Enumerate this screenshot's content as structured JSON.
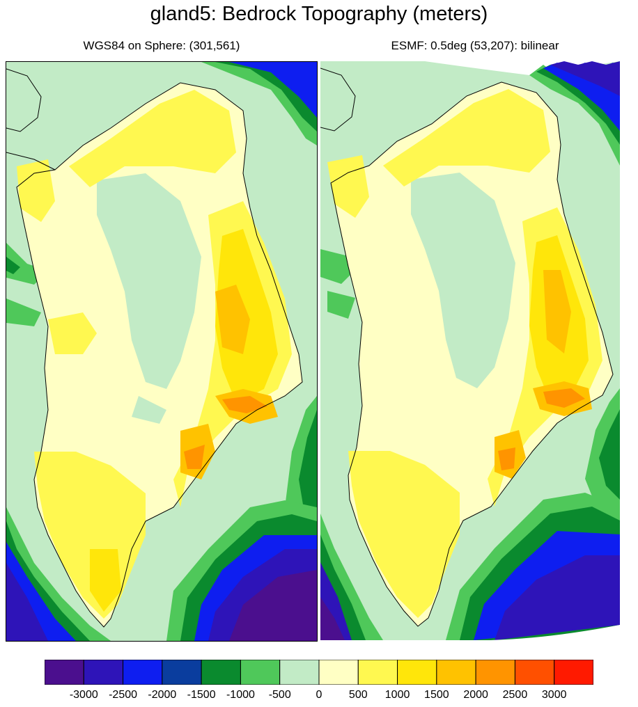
{
  "title": "gland5: Bedrock Topography (meters)",
  "panels": [
    {
      "title": "WGS84 on Sphere: (301,561)"
    },
    {
      "title": "ESMF: 0.5deg (53,207): bilinear"
    }
  ],
  "colorbar": {
    "colors": [
      "#4b0f8e",
      "#2e14b8",
      "#0e1ef0",
      "#0a3d9e",
      "#0a8a2e",
      "#4fc85a",
      "#c2ebc6",
      "#ffffc4",
      "#fff850",
      "#ffe60a",
      "#ffc200",
      "#ff9400",
      "#ff5000",
      "#ff1a00"
    ],
    "labels": [
      "-3000",
      "-2500",
      "-2000",
      "-1500",
      "-1000",
      "-500",
      "0",
      "500",
      "1000",
      "1500",
      "2000",
      "2500",
      "3000"
    ]
  }
}
